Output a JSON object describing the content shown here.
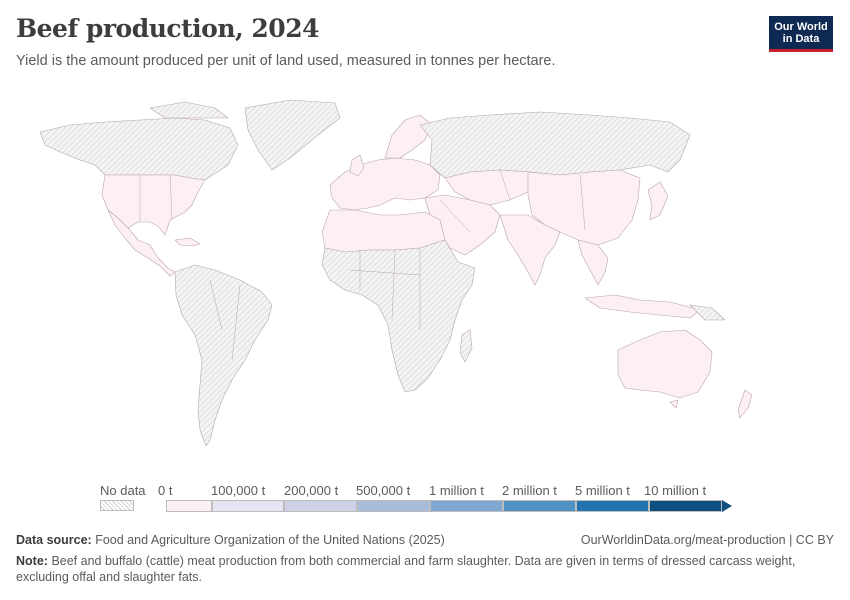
{
  "header": {
    "title": "Beef production, 2024",
    "subtitle": "Yield is the amount produced per unit of land used, measured in tonnes per hectare."
  },
  "logo": {
    "line1": "Our World",
    "line2": "in Data"
  },
  "legend": {
    "no_data_label": "No data",
    "bins": [
      {
        "label": "0 t",
        "color": "#fdf0f5"
      },
      {
        "label": "100,000 t",
        "color": "#e6e4f2"
      },
      {
        "label": "200,000 t",
        "color": "#cfd2e6"
      },
      {
        "label": "500,000 t",
        "color": "#a9bcda"
      },
      {
        "label": "1 million t",
        "color": "#7fa7cf"
      },
      {
        "label": "2 million t",
        "color": "#4f91c2"
      },
      {
        "label": "5 million t",
        "color": "#2373ae"
      },
      {
        "label": "10 million t",
        "color": "#0d4f7f"
      }
    ]
  },
  "map": {
    "no_data_color": "#e9e9e9",
    "low_value_color": "#fdf0f5",
    "border_color": "#b9a3b4"
  },
  "footer": {
    "source_label": "Data source:",
    "source_text": "Food and Agriculture Organization of the United Nations (2025)",
    "url": "OurWorldinData.org/meat-production | CC BY",
    "note_label": "Note:",
    "note_text": "Beef and buffalo (cattle) meat production from both commercial and farm slaughter. Data are given in terms of dressed carcass weight, excluding offal and slaughter fats."
  }
}
